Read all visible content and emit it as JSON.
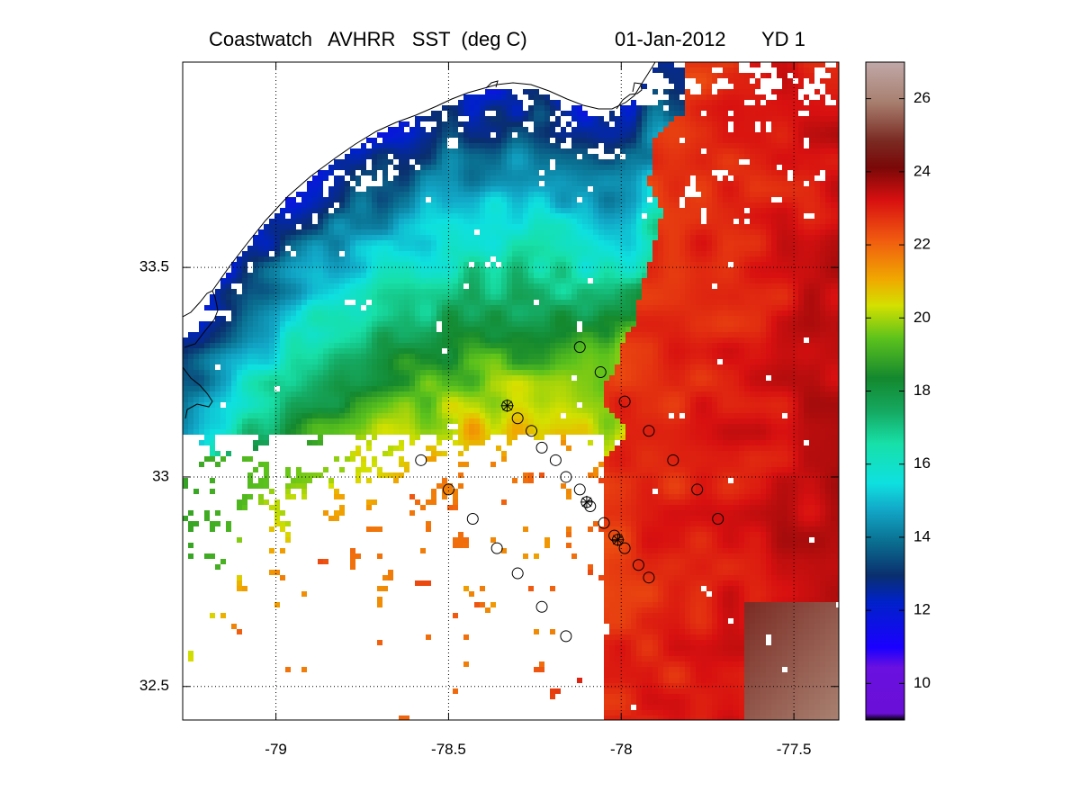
{
  "chart_data": {
    "type": "heatmap",
    "title": {
      "product": "Coastwatch   AVHRR   SST  (deg C)",
      "date": "01-Jan-2012",
      "yearday": "YD 1"
    },
    "xlim": [
      -79.27,
      -77.37
    ],
    "ylim": [
      32.42,
      33.99
    ],
    "x_ticks": [
      -79,
      -78.5,
      -78,
      -77.5
    ],
    "y_ticks": [
      32.5,
      33,
      33.5
    ],
    "x_tick_labels": [
      "-79",
      "-78.5",
      "-78",
      "-77.5"
    ],
    "y_tick_labels": [
      "32.5",
      "33",
      "33.5"
    ],
    "grid": "dotted",
    "colorbar": {
      "vmin": 9,
      "vmax": 27,
      "ticks": [
        10,
        12,
        14,
        16,
        18,
        20,
        22,
        24,
        26
      ],
      "tick_labels": [
        "10",
        "12",
        "14",
        "16",
        "18",
        "20",
        "22",
        "24",
        "26"
      ]
    },
    "sst_field_description": "Cold water (11-15) near coast in north, green (16-19) mid-shelf, yellow/orange (20-22) transition, red (22-24) Gulf Stream offshore east, brown (25-26) in far southeast corner. Many cloud gaps (white) in southwest.",
    "stations": [
      {
        "lon": -78.12,
        "lat": 33.31,
        "marker": "circle"
      },
      {
        "lon": -78.06,
        "lat": 33.25,
        "marker": "circle"
      },
      {
        "lon": -77.99,
        "lat": 33.18,
        "marker": "circle"
      },
      {
        "lon": -77.92,
        "lat": 33.11,
        "marker": "circle"
      },
      {
        "lon": -77.85,
        "lat": 33.04,
        "marker": "circle"
      },
      {
        "lon": -77.78,
        "lat": 32.97,
        "marker": "circle"
      },
      {
        "lon": -77.72,
        "lat": 32.9,
        "marker": "circle"
      },
      {
        "lon": -78.33,
        "lat": 33.17,
        "marker": "star"
      },
      {
        "lon": -78.3,
        "lat": 33.14,
        "marker": "circle"
      },
      {
        "lon": -78.26,
        "lat": 33.11,
        "marker": "circle"
      },
      {
        "lon": -78.23,
        "lat": 33.07,
        "marker": "circle"
      },
      {
        "lon": -78.19,
        "lat": 33.04,
        "marker": "circle"
      },
      {
        "lon": -78.16,
        "lat": 33.0,
        "marker": "circle"
      },
      {
        "lon": -78.12,
        "lat": 32.97,
        "marker": "circle"
      },
      {
        "lon": -78.1,
        "lat": 32.94,
        "marker": "star"
      },
      {
        "lon": -78.09,
        "lat": 32.93,
        "marker": "circle"
      },
      {
        "lon": -78.05,
        "lat": 32.89,
        "marker": "circle"
      },
      {
        "lon": -78.02,
        "lat": 32.86,
        "marker": "circle"
      },
      {
        "lon": -78.01,
        "lat": 32.85,
        "marker": "star"
      },
      {
        "lon": -77.99,
        "lat": 32.83,
        "marker": "circle"
      },
      {
        "lon": -77.95,
        "lat": 32.79,
        "marker": "circle"
      },
      {
        "lon": -77.92,
        "lat": 32.76,
        "marker": "circle"
      },
      {
        "lon": -78.58,
        "lat": 33.04,
        "marker": "circle"
      },
      {
        "lon": -78.5,
        "lat": 32.97,
        "marker": "circle"
      },
      {
        "lon": -78.43,
        "lat": 32.9,
        "marker": "circle"
      },
      {
        "lon": -78.36,
        "lat": 32.83,
        "marker": "circle"
      },
      {
        "lon": -78.3,
        "lat": 32.77,
        "marker": "circle"
      },
      {
        "lon": -78.23,
        "lat": 32.69,
        "marker": "circle"
      },
      {
        "lon": -78.16,
        "lat": 32.62,
        "marker": "circle"
      }
    ]
  }
}
